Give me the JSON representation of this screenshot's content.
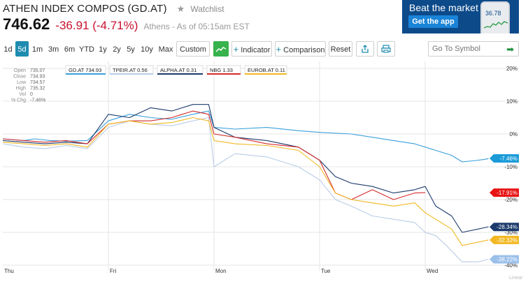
{
  "quote": {
    "name": "ATHEN INDEX COMPOS (GD.AT)",
    "watchlist_label": "Watchlist",
    "price": "746.62",
    "change": "-36.91 (-4.71%)",
    "asof": "Athens - As of 05:15am EST"
  },
  "ad": {
    "headline": "Beat the market",
    "button": "Get the app",
    "phone_value": "36.78"
  },
  "toolbar": {
    "ranges": [
      "1d",
      "5d",
      "1m",
      "3m",
      "6m",
      "YTD",
      "1y",
      "2y",
      "5y",
      "10y",
      "Max"
    ],
    "active_range": "5d",
    "custom_label": "Custom",
    "indicator_label": "Indicator",
    "comparison_label": "Comparison",
    "reset_label": "Reset",
    "search_placeholder": "Go To Symbol"
  },
  "chart_data": {
    "type": "line",
    "x_ticks": [
      "Thu",
      "Fri",
      "Mon",
      "Tue",
      "Wed"
    ],
    "y_ticks": [
      "20%",
      "10%",
      "0%",
      "-10%",
      "-20%",
      "-30%",
      "-40%"
    ],
    "ylim": [
      -40,
      20
    ],
    "grid": true,
    "scale_label": "Linear",
    "ohlc": [
      {
        "label": "Open",
        "value": "735.07"
      },
      {
        "label": "Close",
        "value": "734.93"
      },
      {
        "label": "Low",
        "value": "734.57"
      },
      {
        "label": "High",
        "value": "735.32"
      },
      {
        "label": "Vol",
        "value": "0"
      },
      {
        "label": "% Chg",
        "value": "-7.46%"
      }
    ],
    "series": [
      {
        "name": "GD.AT",
        "legend": "GD.AT 734.93",
        "end_label": "-7.46%",
        "color": "#3aa0dc",
        "points": [
          [
            0,
            -1.5
          ],
          [
            0.2,
            -2
          ],
          [
            0.3,
            -1.5
          ],
          [
            0.45,
            -2
          ],
          [
            0.6,
            -2.2
          ],
          [
            0.8,
            -2
          ],
          [
            1.0,
            4
          ],
          [
            1.2,
            6
          ],
          [
            1.4,
            5
          ],
          [
            1.6,
            4.5
          ],
          [
            1.8,
            6
          ],
          [
            1.95,
            7
          ],
          [
            2.0,
            2
          ],
          [
            2.2,
            1.5
          ],
          [
            2.5,
            2
          ],
          [
            2.8,
            1
          ],
          [
            3.0,
            0.5
          ],
          [
            3.3,
            0
          ],
          [
            3.5,
            -1
          ],
          [
            3.7,
            -2
          ],
          [
            3.9,
            -3
          ],
          [
            4.0,
            -4
          ],
          [
            4.1,
            -5
          ],
          [
            4.25,
            -6.5
          ],
          [
            4.35,
            -8.5
          ],
          [
            4.45,
            -8.2
          ],
          [
            4.55,
            -7.8
          ],
          [
            4.6,
            -7.5
          ]
        ]
      },
      {
        "name": "TPEIR.AT",
        "legend": "TPEIR.AT 0.56",
        "end_label": "-38.22%",
        "color": "#b8cde6",
        "points": [
          [
            0,
            -3
          ],
          [
            0.2,
            -4
          ],
          [
            0.4,
            -4.5
          ],
          [
            0.6,
            -3.5
          ],
          [
            0.8,
            -4.5
          ],
          [
            1.0,
            2
          ],
          [
            1.2,
            4
          ],
          [
            1.4,
            3
          ],
          [
            1.6,
            2.5
          ],
          [
            1.8,
            4
          ],
          [
            1.95,
            5
          ],
          [
            2.0,
            -10
          ],
          [
            2.2,
            -6
          ],
          [
            2.5,
            -7
          ],
          [
            2.8,
            -10
          ],
          [
            3.0,
            -14
          ],
          [
            3.15,
            -20
          ],
          [
            3.3,
            -22
          ],
          [
            3.5,
            -25
          ],
          [
            3.7,
            -26
          ],
          [
            3.9,
            -27
          ],
          [
            4.0,
            -30
          ],
          [
            4.1,
            -31
          ],
          [
            4.2,
            -34
          ],
          [
            4.35,
            -39
          ],
          [
            4.5,
            -39
          ],
          [
            4.6,
            -38.2
          ]
        ]
      },
      {
        "name": "ALPHA.AT",
        "legend": "ALPHA.AT 0.31",
        "end_label": "-28.34%",
        "color": "#1b3a6b",
        "points": [
          [
            0,
            -2
          ],
          [
            0.2,
            -2.5
          ],
          [
            0.4,
            -3
          ],
          [
            0.6,
            -2.5
          ],
          [
            0.8,
            -3
          ],
          [
            1.0,
            6
          ],
          [
            1.2,
            5
          ],
          [
            1.4,
            8
          ],
          [
            1.6,
            7
          ],
          [
            1.8,
            9
          ],
          [
            1.95,
            9
          ],
          [
            2.0,
            2
          ],
          [
            2.2,
            -1
          ],
          [
            2.5,
            -2
          ],
          [
            2.8,
            -4
          ],
          [
            3.0,
            -8
          ],
          [
            3.15,
            -13
          ],
          [
            3.3,
            -15
          ],
          [
            3.5,
            -16
          ],
          [
            3.7,
            -18
          ],
          [
            3.9,
            -17
          ],
          [
            4.0,
            -16
          ],
          [
            4.1,
            -22
          ],
          [
            4.25,
            -25
          ],
          [
            4.35,
            -30
          ],
          [
            4.5,
            -29
          ],
          [
            4.6,
            -28.3
          ]
        ]
      },
      {
        "name": "NBG.AT",
        "legend": "NBG 1.33",
        "end_label": "-17.91%",
        "color": "#d42c2c",
        "points": [
          [
            0,
            -1.5
          ],
          [
            0.2,
            -2
          ],
          [
            0.4,
            -2.5
          ],
          [
            0.6,
            -2
          ],
          [
            0.8,
            -3
          ],
          [
            1.0,
            3
          ],
          [
            1.2,
            4
          ],
          [
            1.4,
            4
          ],
          [
            1.6,
            5
          ],
          [
            1.8,
            7
          ],
          [
            1.95,
            6
          ],
          [
            2.0,
            0
          ],
          [
            2.2,
            -1
          ],
          [
            2.5,
            -3
          ],
          [
            2.8,
            -4
          ],
          [
            3.0,
            -8
          ],
          [
            3.15,
            -18
          ],
          [
            3.3,
            -20
          ],
          [
            3.5,
            -17
          ],
          [
            3.7,
            -20
          ],
          [
            3.9,
            -18
          ],
          [
            4.0,
            -17.9
          ]
        ]
      },
      {
        "name": "EUROB.AT",
        "legend": "EUROB.AT 0.11",
        "end_label": "-32.32%",
        "color": "#f2b824",
        "points": [
          [
            0,
            -2.5
          ],
          [
            0.2,
            -3
          ],
          [
            0.4,
            -3.5
          ],
          [
            0.6,
            -3
          ],
          [
            0.8,
            -4
          ],
          [
            1.0,
            3
          ],
          [
            1.2,
            4
          ],
          [
            1.4,
            3
          ],
          [
            1.6,
            3.5
          ],
          [
            1.8,
            5
          ],
          [
            1.95,
            4
          ],
          [
            2.0,
            -2
          ],
          [
            2.2,
            -3
          ],
          [
            2.5,
            -3.5
          ],
          [
            2.8,
            -5
          ],
          [
            3.0,
            -10
          ],
          [
            3.15,
            -18
          ],
          [
            3.3,
            -20
          ],
          [
            3.5,
            -21
          ],
          [
            3.7,
            -22
          ],
          [
            3.9,
            -21
          ],
          [
            4.0,
            -24
          ],
          [
            4.1,
            -26
          ],
          [
            4.25,
            -29
          ],
          [
            4.35,
            -34
          ],
          [
            4.5,
            -33
          ],
          [
            4.6,
            -32.3
          ]
        ]
      }
    ],
    "end_tag_colors": [
      "#1a9bd8",
      "#e81313",
      "#1b3a6b",
      "#f2b824",
      "#9ac0ea"
    ]
  }
}
